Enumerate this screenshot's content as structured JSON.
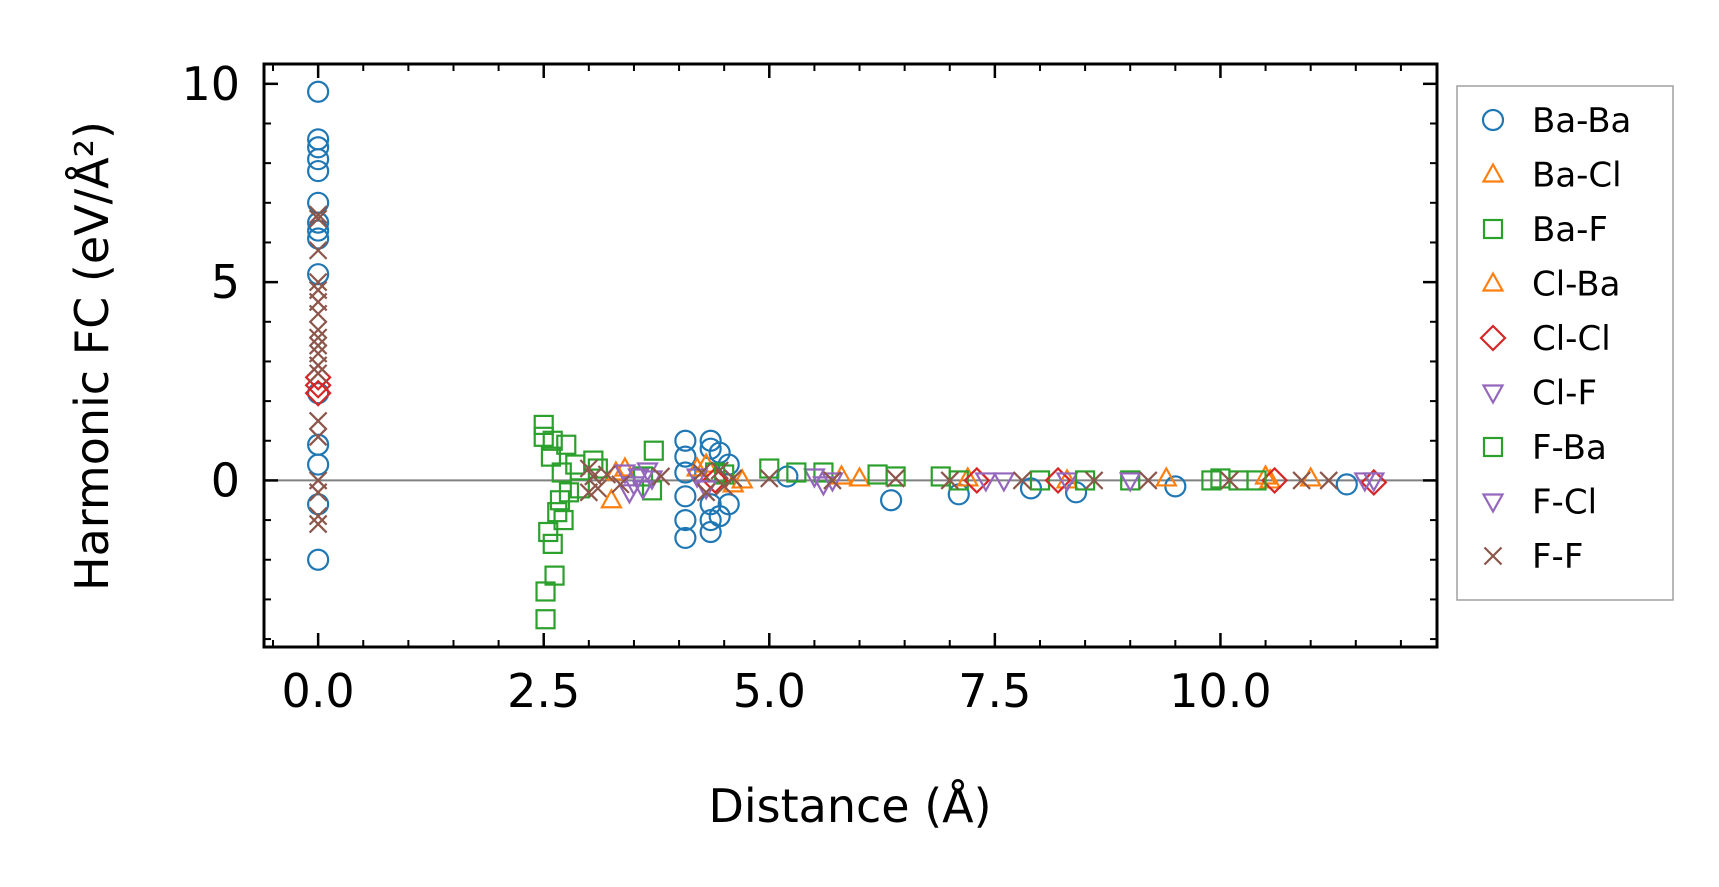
{
  "chart_data": {
    "type": "scatter",
    "xlabel": "Distance (Å)",
    "ylabel": "Harmonic FC (eV/Å²)",
    "xlim": [
      -0.6,
      12.4
    ],
    "ylim": [
      -4.2,
      10.5
    ],
    "xticks": [
      0.0,
      2.5,
      5.0,
      7.5,
      10.0
    ],
    "xtick_labels": [
      "0.0",
      "2.5",
      "5.0",
      "7.5",
      "10.0"
    ],
    "yticks": [
      0,
      5,
      10
    ],
    "ytick_labels": [
      "0",
      "5",
      "10"
    ],
    "zero_line": true,
    "legend_position": "outside-right",
    "series": [
      {
        "name": "Ba-Ba",
        "marker": "circle",
        "color": "#1f77b4",
        "points": [
          [
            0.0,
            9.8
          ],
          [
            0.0,
            8.6
          ],
          [
            0.0,
            8.4
          ],
          [
            0.0,
            8.1
          ],
          [
            0.0,
            7.8
          ],
          [
            0.0,
            7.0
          ],
          [
            0.0,
            6.5
          ],
          [
            0.0,
            6.3
          ],
          [
            0.0,
            6.1
          ],
          [
            0.0,
            5.2
          ],
          [
            0.0,
            2.2
          ],
          [
            0.0,
            0.9
          ],
          [
            0.0,
            0.4
          ],
          [
            0.0,
            -0.6
          ],
          [
            0.0,
            -2.0
          ],
          [
            4.07,
            1.0
          ],
          [
            4.07,
            0.6
          ],
          [
            4.07,
            0.2
          ],
          [
            4.07,
            -0.4
          ],
          [
            4.07,
            -1.0
          ],
          [
            4.07,
            -1.45
          ],
          [
            4.35,
            1.0
          ],
          [
            4.35,
            0.8
          ],
          [
            4.35,
            -0.6
          ],
          [
            4.35,
            -1.0
          ],
          [
            4.35,
            -1.3
          ],
          [
            4.45,
            0.7
          ],
          [
            4.45,
            -0.9
          ],
          [
            4.55,
            0.4
          ],
          [
            4.55,
            -0.6
          ],
          [
            5.2,
            0.1
          ],
          [
            6.35,
            -0.5
          ],
          [
            7.1,
            -0.35
          ],
          [
            7.9,
            -0.2
          ],
          [
            8.4,
            -0.3
          ],
          [
            9.5,
            -0.15
          ],
          [
            11.4,
            -0.1
          ]
        ]
      },
      {
        "name": "Ba-Cl",
        "marker": "triangle-up",
        "color": "#ff7f0e",
        "points": [
          [
            3.25,
            -0.5
          ],
          [
            3.4,
            0.3
          ],
          [
            4.3,
            0.4
          ],
          [
            4.6,
            -0.1
          ],
          [
            5.8,
            0.1
          ],
          [
            7.2,
            0.05
          ],
          [
            8.3,
            0.0
          ],
          [
            9.4,
            0.05
          ],
          [
            10.5,
            0.1
          ],
          [
            11.0,
            0.05
          ]
        ]
      },
      {
        "name": "Ba-F",
        "marker": "square",
        "color": "#2ca02c",
        "points": [
          [
            2.5,
            1.4
          ],
          [
            2.5,
            1.1
          ],
          [
            2.52,
            -2.8
          ],
          [
            2.52,
            -3.5
          ],
          [
            2.55,
            -1.3
          ],
          [
            2.58,
            0.6
          ],
          [
            2.6,
            -1.6
          ],
          [
            2.62,
            -2.4
          ],
          [
            2.65,
            -0.8
          ],
          [
            2.7,
            0.2
          ],
          [
            2.72,
            -1.0
          ],
          [
            2.78,
            -0.3
          ],
          [
            2.85,
            0.4
          ],
          [
            3.05,
            0.5
          ],
          [
            3.6,
            0.1
          ],
          [
            3.72,
            0.75
          ],
          [
            3.7,
            -0.25
          ],
          [
            4.4,
            0.2
          ],
          [
            5.0,
            0.3
          ],
          [
            5.6,
            0.2
          ],
          [
            6.4,
            0.1
          ],
          [
            7.1,
            0.0
          ],
          [
            8.0,
            0.0
          ],
          [
            9.0,
            0.0
          ],
          [
            10.0,
            0.05
          ],
          [
            10.2,
            0.0
          ]
        ]
      },
      {
        "name": "Cl-Ba",
        "marker": "triangle-up",
        "color": "#ff7f0e",
        "points": [
          [
            3.3,
            0.2
          ],
          [
            4.2,
            0.3
          ],
          [
            4.7,
            0.0
          ],
          [
            6.0,
            0.05
          ],
          [
            10.55,
            0.0
          ]
        ]
      },
      {
        "name": "Cl-Cl",
        "marker": "diamond",
        "color": "#d62728",
        "points": [
          [
            0.0,
            2.6
          ],
          [
            0.0,
            2.4
          ],
          [
            0.0,
            2.2
          ],
          [
            4.4,
            0.0
          ],
          [
            7.3,
            0.0
          ],
          [
            8.2,
            0.0
          ],
          [
            10.6,
            0.0
          ],
          [
            11.7,
            -0.05
          ]
        ]
      },
      {
        "name": "Cl-F",
        "marker": "triangle-down",
        "color": "#9467bd",
        "points": [
          [
            3.4,
            0.2
          ],
          [
            3.45,
            -0.3
          ],
          [
            3.55,
            0.1
          ],
          [
            3.6,
            -0.2
          ],
          [
            3.65,
            0.25
          ],
          [
            4.2,
            0.1
          ],
          [
            5.5,
            0.1
          ],
          [
            5.6,
            -0.1
          ],
          [
            7.4,
            0.0
          ],
          [
            8.3,
            0.0
          ],
          [
            11.6,
            0.0
          ]
        ]
      },
      {
        "name": "F-Ba",
        "marker": "square",
        "color": "#2ca02c",
        "points": [
          [
            2.6,
            1.0
          ],
          [
            2.68,
            -0.5
          ],
          [
            2.75,
            0.9
          ],
          [
            2.9,
            -0.2
          ],
          [
            3.1,
            0.3
          ],
          [
            4.5,
            0.15
          ],
          [
            5.3,
            0.2
          ],
          [
            6.2,
            0.15
          ],
          [
            6.9,
            0.1
          ],
          [
            8.5,
            0.0
          ],
          [
            9.9,
            0.0
          ],
          [
            10.4,
            0.0
          ]
        ]
      },
      {
        "name": "F-Cl",
        "marker": "triangle-down",
        "color": "#9467bd",
        "points": [
          [
            3.5,
            -0.1
          ],
          [
            3.7,
            0.05
          ],
          [
            4.3,
            -0.2
          ],
          [
            5.7,
            0.0
          ],
          [
            7.6,
            0.0
          ],
          [
            9.0,
            0.0
          ],
          [
            11.7,
            0.0
          ]
        ]
      },
      {
        "name": "F-F",
        "marker": "x",
        "color": "#8c564b",
        "points": [
          [
            0.0,
            6.7
          ],
          [
            0.0,
            6.6
          ],
          [
            0.0,
            5.8
          ],
          [
            0.0,
            5.0
          ],
          [
            0.0,
            4.8
          ],
          [
            0.0,
            4.5
          ],
          [
            0.0,
            4.2
          ],
          [
            0.0,
            3.8
          ],
          [
            0.0,
            3.6
          ],
          [
            0.0,
            3.4
          ],
          [
            0.0,
            3.2
          ],
          [
            0.0,
            2.9
          ],
          [
            0.0,
            2.7
          ],
          [
            0.0,
            1.5
          ],
          [
            0.0,
            1.1
          ],
          [
            0.0,
            0.0
          ],
          [
            0.0,
            -0.3
          ],
          [
            0.0,
            -0.9
          ],
          [
            0.0,
            -1.1
          ],
          [
            3.0,
            0.3
          ],
          [
            3.0,
            -0.3
          ],
          [
            3.05,
            0.1
          ],
          [
            3.1,
            -0.2
          ],
          [
            3.2,
            0.15
          ],
          [
            3.35,
            -0.1
          ],
          [
            3.8,
            0.1
          ],
          [
            4.25,
            0.2
          ],
          [
            4.3,
            -0.3
          ],
          [
            4.45,
            0.25
          ],
          [
            4.5,
            -0.15
          ],
          [
            4.6,
            0.05
          ],
          [
            5.0,
            0.05
          ],
          [
            5.7,
            0.0
          ],
          [
            6.4,
            0.05
          ],
          [
            7.0,
            0.0
          ],
          [
            7.8,
            0.0
          ],
          [
            8.6,
            0.0
          ],
          [
            9.2,
            0.0
          ],
          [
            10.1,
            0.0
          ],
          [
            10.9,
            0.0
          ],
          [
            11.2,
            0.0
          ]
        ]
      }
    ]
  }
}
